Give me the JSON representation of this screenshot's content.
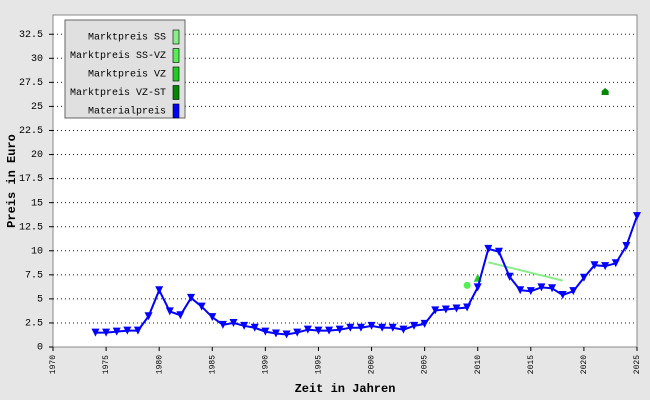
{
  "chart_data": {
    "type": "line",
    "x_label": "Zeit in Jahren",
    "y_label": "Preis in Euro",
    "xlim": [
      1970,
      2025
    ],
    "xticks": [
      1970,
      1975,
      1980,
      1985,
      1990,
      1995,
      2000,
      2005,
      2010,
      2015,
      2020,
      2025
    ],
    "ylim": [
      0,
      34.5
    ],
    "yticks": [
      0,
      2.5,
      5,
      7.5,
      10,
      12.5,
      15,
      17.5,
      20,
      22.5,
      25,
      27.5,
      30,
      32.5
    ],
    "grid": true,
    "legend_position": "upper left",
    "series": [
      {
        "name": "Marktpreis SS",
        "color": "#88ee88",
        "marker": "none",
        "x": [
          2011,
          2018
        ],
        "values": [
          8.8,
          6.9
        ]
      },
      {
        "name": "Marktpreis SS-VZ",
        "color": "#55ee55",
        "marker": "circle",
        "x": [
          2009
        ],
        "values": [
          6.4
        ]
      },
      {
        "name": "Marktpreis VZ",
        "color": "#22cc22",
        "marker": "triangle-up",
        "x": [
          2010
        ],
        "values": [
          7.2
        ]
      },
      {
        "name": "Marktpreis VZ-ST",
        "color": "#008800",
        "marker": "house",
        "x": [
          2022
        ],
        "values": [
          26.5
        ]
      },
      {
        "name": "Materialpreis",
        "color": "#0000ff",
        "marker": "triangle-down",
        "x": [
          1974,
          1975,
          1976,
          1977,
          1978,
          1979,
          1980,
          1981,
          1982,
          1983,
          1984,
          1985,
          1986,
          1987,
          1988,
          1989,
          1990,
          1991,
          1992,
          1993,
          1994,
          1995,
          1996,
          1997,
          1998,
          1999,
          2000,
          2001,
          2002,
          2003,
          2004,
          2005,
          2006,
          2007,
          2008,
          2009,
          2010,
          2011,
          2012,
          2013,
          2014,
          2015,
          2016,
          2017,
          2018,
          2019,
          2020,
          2021,
          2022,
          2023,
          2024,
          2025
        ],
        "values": [
          1.5,
          1.5,
          1.6,
          1.7,
          1.7,
          3.2,
          5.9,
          3.7,
          3.3,
          5.1,
          4.2,
          3.1,
          2.3,
          2.5,
          2.2,
          2.0,
          1.6,
          1.4,
          1.3,
          1.5,
          1.8,
          1.7,
          1.7,
          1.8,
          2.0,
          2.0,
          2.2,
          2.0,
          2.0,
          1.8,
          2.2,
          2.4,
          3.8,
          3.9,
          4.0,
          4.1,
          6.2,
          10.2,
          9.9,
          7.3,
          5.9,
          5.8,
          6.2,
          6.1,
          5.4,
          5.8,
          7.2,
          8.5,
          8.4,
          8.7,
          10.5,
          13.6
        ]
      }
    ]
  }
}
